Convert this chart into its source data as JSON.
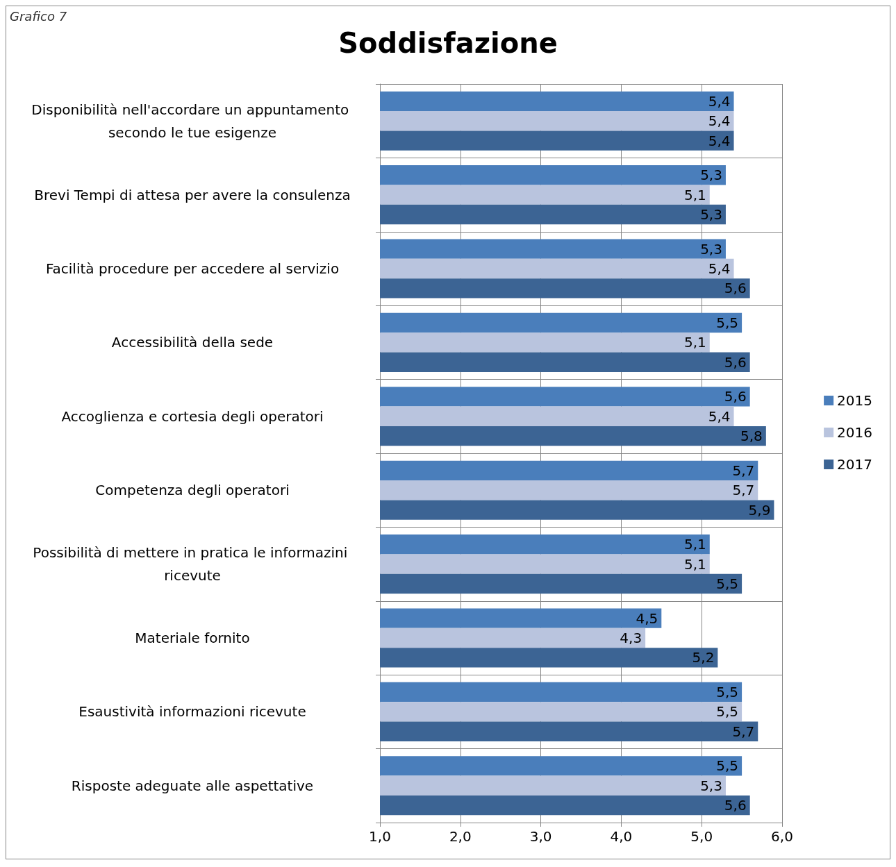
{
  "chart_data": {
    "type": "bar",
    "orientation": "horizontal",
    "title": "Soddisfazione",
    "annotations": [
      "Grafico 7"
    ],
    "categories": [
      "Disponibilità nell'accordare un appuntamento secondo le tue esigenze",
      "Brevi Tempi di attesa per avere la consulenza",
      "Facilità procedure per accedere al servizio",
      "Accessibilità della sede",
      "Accoglienza e cortesia degli operatori",
      "Competenza degli operatori",
      "Possibilità di mettere in pratica le informazini ricevute",
      "Materiale fornito",
      "Esaustività informazioni ricevute",
      "Risposte adeguate alle aspettative"
    ],
    "series": [
      {
        "name": "2015",
        "color": "#4a7ebb",
        "values": [
          5.4,
          5.3,
          5.3,
          5.5,
          5.6,
          5.7,
          5.1,
          4.5,
          5.5,
          5.5
        ],
        "value_labels": [
          "5,4",
          "5,3",
          "5,3",
          "5,5",
          "5,6",
          "5,7",
          "5,1",
          "4,5",
          "5,5",
          "5,5"
        ]
      },
      {
        "name": "2016",
        "color": "#b9c4de",
        "values": [
          5.4,
          5.1,
          5.4,
          5.1,
          5.4,
          5.7,
          5.1,
          4.3,
          5.5,
          5.3
        ],
        "value_labels": [
          "5,4",
          "5,1",
          "5,4",
          "5,1",
          "5,4",
          "5,7",
          "5,1",
          "4,3",
          "5,5",
          "5,3"
        ]
      },
      {
        "name": "2017",
        "color": "#3c6494",
        "values": [
          5.4,
          5.3,
          5.6,
          5.6,
          5.8,
          5.9,
          5.5,
          5.2,
          5.7,
          5.6
        ],
        "value_labels": [
          "5,4",
          "5,3",
          "5,6",
          "5,6",
          "5,8",
          "5,9",
          "5,5",
          "5,2",
          "5,7",
          "5,6"
        ]
      }
    ],
    "xlim": [
      1,
      6
    ],
    "xticks": [
      {
        "value": 1,
        "label": "1,0"
      },
      {
        "value": 2,
        "label": "2,0"
      },
      {
        "value": 3,
        "label": "3,0"
      },
      {
        "value": 4,
        "label": "4,0"
      },
      {
        "value": 5,
        "label": "5,0"
      },
      {
        "value": 6,
        "label": "6,0"
      }
    ],
    "grid": true,
    "legend": "right"
  }
}
